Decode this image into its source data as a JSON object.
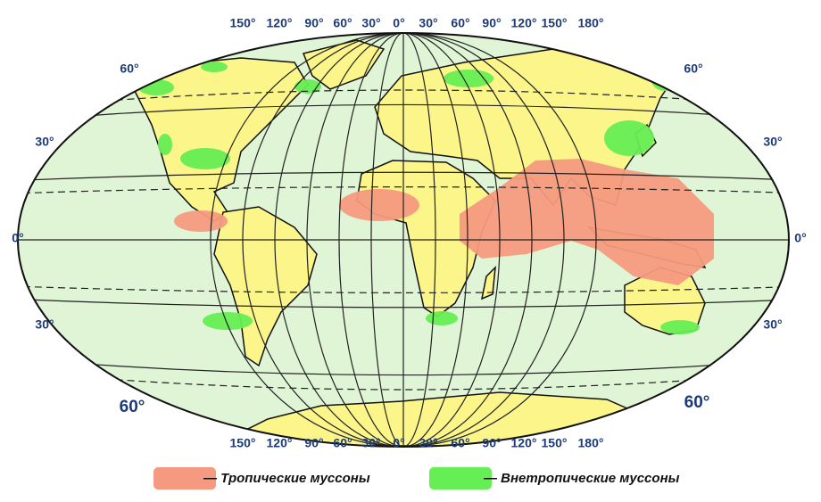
{
  "map": {
    "top_labels": [
      "150°",
      "120°",
      "90°",
      "60°",
      "30°",
      "0°",
      "30°",
      "60°",
      "90°",
      "120°",
      "150°",
      "180°"
    ],
    "bottom_labels": [
      "150°",
      "120°",
      "90°",
      "60°",
      "30°",
      "0°",
      "30°",
      "60°",
      "90°",
      "120°",
      "150°",
      "180°"
    ],
    "left_labels": [
      "60°",
      "30°",
      "0°",
      "30°",
      "60°"
    ],
    "right_labels": [
      "60°",
      "30°",
      "0°",
      "30°",
      "60°"
    ],
    "legend": [
      {
        "label": "— Тропические муссоны",
        "color": "#f59a80"
      },
      {
        "label": "— Внетропические муссоны",
        "color": "#66ee55"
      }
    ]
  }
}
